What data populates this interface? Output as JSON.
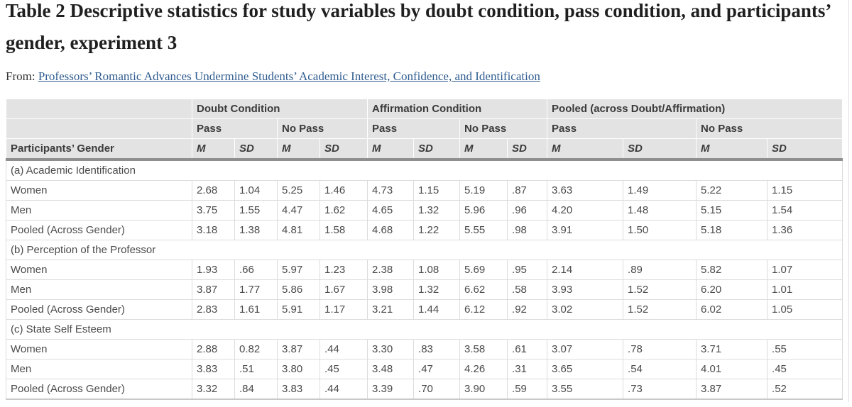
{
  "page": {
    "title": "Table 2 Descriptive statistics for study variables by doubt condition, pass condition, and participants’ gender, experiment 3",
    "from_label": "From:",
    "source_link": "Professors’ Romantic Advances Undermine Students’ Academic Interest, Confidence, and Identification"
  },
  "colors": {
    "header_bg": "#e3e3e3",
    "header_text": "#3b3b3b",
    "body_text": "#4b4b4b",
    "link": "#2f5c8f",
    "grid_line": "#dcdcdc",
    "outer_border": "#c9c9c9",
    "thick_rule": "#8f8f8f"
  },
  "table": {
    "row_header": "Participants’ Gender",
    "groups": [
      {
        "label": "Doubt Condition"
      },
      {
        "label": "Affirmation Condition"
      },
      {
        "label": "Pooled (across Doubt/Affirmation)"
      }
    ],
    "subgroups": [
      "Pass",
      "No Pass"
    ],
    "stat_labels": [
      "M",
      "SD"
    ],
    "sections": [
      {
        "label": "(a) Academic Identification",
        "rows": [
          {
            "label": "Women",
            "values": [
              "2.68",
              "1.04",
              "5.25",
              "1.46",
              "4.73",
              "1.15",
              "5.19",
              ".87",
              "3.63",
              "1.49",
              "5.22",
              "1.15"
            ]
          },
          {
            "label": "Men",
            "values": [
              "3.75",
              "1.55",
              "4.47",
              "1.62",
              "4.65",
              "1.32",
              "5.96",
              ".96",
              "4.20",
              "1.48",
              "5.15",
              "1.54"
            ]
          },
          {
            "label": "Pooled (Across Gender)",
            "values": [
              "3.18",
              "1.38",
              "4.81",
              "1.58",
              "4.68",
              "1.22",
              "5.55",
              ".98",
              "3.91",
              "1.50",
              "5.18",
              "1.36"
            ]
          }
        ]
      },
      {
        "label": "(b) Perception of the Professor",
        "rows": [
          {
            "label": "Women",
            "values": [
              "1.93",
              ".66",
              "5.97",
              "1.23",
              "2.38",
              "1.08",
              "5.69",
              ".95",
              "2.14",
              ".89",
              "5.82",
              "1.07"
            ]
          },
          {
            "label": "Men",
            "values": [
              "3.87",
              "1.77",
              "5.86",
              "1.67",
              "3.98",
              "1.32",
              "6.62",
              ".58",
              "3.93",
              "1.52",
              "6.20",
              "1.01"
            ]
          },
          {
            "label": "Pooled (Across Gender)",
            "values": [
              "2.83",
              "1.61",
              "5.91",
              "1.17",
              "3.21",
              "1.44",
              "6.12",
              ".92",
              "3.02",
              "1.52",
              "6.02",
              "1.05"
            ]
          }
        ]
      },
      {
        "label": "(c) State Self Esteem",
        "rows": [
          {
            "label": "Women",
            "values": [
              "2.88",
              "0.82",
              "3.87",
              ".44",
              "3.30",
              ".83",
              "3.58",
              ".61",
              "3.07",
              ".78",
              "3.71",
              ".55"
            ]
          },
          {
            "label": "Men",
            "values": [
              "3.83",
              ".51",
              "3.80",
              ".45",
              "3.48",
              ".47",
              "4.26",
              ".31",
              "3.65",
              ".54",
              "4.01",
              ".45"
            ]
          },
          {
            "label": "Pooled (Across Gender)",
            "values": [
              "3.32",
              ".84",
              "3.83",
              ".44",
              "3.39",
              ".70",
              "3.90",
              ".59",
              "3.55",
              ".73",
              "3.87",
              ".52"
            ]
          }
        ]
      }
    ]
  }
}
